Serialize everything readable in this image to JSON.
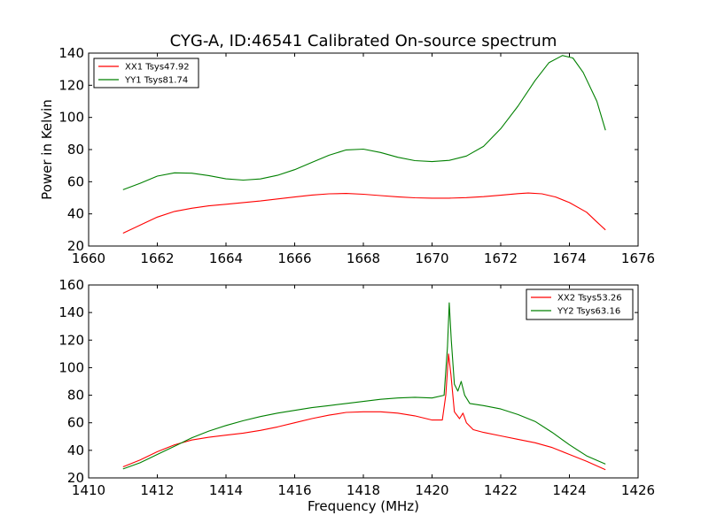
{
  "chart_data": [
    {
      "type": "line",
      "title": "CYG-A, ID:46541 Calibrated On-source spectrum",
      "xlabel": "",
      "ylabel": "Power in Kelvin",
      "xlim": [
        1660,
        1676
      ],
      "ylim": [
        20,
        140
      ],
      "xticks": [
        "1660",
        "1662",
        "1664",
        "1666",
        "1668",
        "1670",
        "1672",
        "1674",
        "1676"
      ],
      "yticks": [
        "20",
        "40",
        "60",
        "80",
        "100",
        "120",
        "140"
      ],
      "grid": false,
      "legend": "top-left",
      "series": [
        {
          "name": "XX1 Tsys47.92",
          "color": "#ff0000",
          "points": [
            [
              1661.0,
              28
            ],
            [
              1661.5,
              33
            ],
            [
              1662.0,
              38
            ],
            [
              1662.5,
              41.5
            ],
            [
              1663.0,
              43.5
            ],
            [
              1663.5,
              45
            ],
            [
              1664.0,
              46
            ],
            [
              1664.5,
              47
            ],
            [
              1665.0,
              48
            ],
            [
              1665.5,
              49.3
            ],
            [
              1666.0,
              50.5
            ],
            [
              1666.5,
              51.7
            ],
            [
              1667.0,
              52.5
            ],
            [
              1667.5,
              52.7
            ],
            [
              1668.0,
              52.2
            ],
            [
              1668.5,
              51.4
            ],
            [
              1669.0,
              50.6
            ],
            [
              1669.5,
              50
            ],
            [
              1670.0,
              49.8
            ],
            [
              1670.5,
              49.8
            ],
            [
              1671.0,
              50.1
            ],
            [
              1671.5,
              50.7
            ],
            [
              1672.0,
              51.6
            ],
            [
              1672.5,
              52.6
            ],
            [
              1672.8,
              53
            ],
            [
              1673.2,
              52.5
            ],
            [
              1673.6,
              50.5
            ],
            [
              1674.0,
              47
            ],
            [
              1674.5,
              41
            ],
            [
              1674.8,
              35
            ],
            [
              1675.05,
              30
            ]
          ]
        },
        {
          "name": "YY1 Tsys81.74",
          "color": "#008000",
          "points": [
            [
              1661.0,
              55
            ],
            [
              1661.5,
              59
            ],
            [
              1662.0,
              63.5
            ],
            [
              1662.5,
              65.5
            ],
            [
              1663.0,
              65.3
            ],
            [
              1663.5,
              63.8
            ],
            [
              1664.0,
              61.8
            ],
            [
              1664.5,
              61
            ],
            [
              1665.0,
              61.7
            ],
            [
              1665.5,
              64
            ],
            [
              1666.0,
              67.5
            ],
            [
              1666.5,
              72
            ],
            [
              1667.0,
              76.5
            ],
            [
              1667.5,
              79.8
            ],
            [
              1668.0,
              80.3
            ],
            [
              1668.5,
              78.2
            ],
            [
              1669.0,
              75.2
            ],
            [
              1669.5,
              73.1
            ],
            [
              1670.0,
              72.5
            ],
            [
              1670.5,
              73.3
            ],
            [
              1671.0,
              76
            ],
            [
              1671.5,
              82
            ],
            [
              1672.0,
              93
            ],
            [
              1672.5,
              107
            ],
            [
              1673.0,
              123
            ],
            [
              1673.4,
              134
            ],
            [
              1673.8,
              138.5
            ],
            [
              1674.1,
              137
            ],
            [
              1674.4,
              128
            ],
            [
              1674.8,
              110
            ],
            [
              1675.05,
              92
            ]
          ]
        }
      ]
    },
    {
      "type": "line",
      "title": "",
      "xlabel": "Frequency (MHz)",
      "ylabel": "",
      "xlim": [
        1410,
        1426
      ],
      "ylim": [
        20,
        160
      ],
      "xticks": [
        "1410",
        "1412",
        "1414",
        "1416",
        "1418",
        "1420",
        "1422",
        "1424",
        "1426"
      ],
      "yticks": [
        "20",
        "40",
        "60",
        "80",
        "100",
        "120",
        "140",
        "160"
      ],
      "grid": false,
      "legend": "top-right",
      "series": [
        {
          "name": "XX2 Tsys53.26",
          "color": "#ff0000",
          "points": [
            [
              1411.0,
              28
            ],
            [
              1411.5,
              33
            ],
            [
              1412.0,
              39
            ],
            [
              1412.5,
              44
            ],
            [
              1413.0,
              47.5
            ],
            [
              1413.5,
              49.5
            ],
            [
              1414.0,
              51
            ],
            [
              1414.5,
              52.5
            ],
            [
              1415.0,
              54.5
            ],
            [
              1415.5,
              57
            ],
            [
              1416.0,
              60
            ],
            [
              1416.5,
              63
            ],
            [
              1417.0,
              65.5
            ],
            [
              1417.5,
              67.5
            ],
            [
              1418.0,
              68
            ],
            [
              1418.5,
              68
            ],
            [
              1419.0,
              67
            ],
            [
              1419.5,
              65
            ],
            [
              1420.0,
              62
            ],
            [
              1420.3,
              62
            ],
            [
              1420.4,
              80
            ],
            [
              1420.48,
              110
            ],
            [
              1420.55,
              95
            ],
            [
              1420.65,
              68
            ],
            [
              1420.8,
              63
            ],
            [
              1420.9,
              67
            ],
            [
              1421.0,
              60
            ],
            [
              1421.2,
              55
            ],
            [
              1421.5,
              53
            ],
            [
              1422.0,
              50.5
            ],
            [
              1422.5,
              48
            ],
            [
              1423.0,
              45.5
            ],
            [
              1423.5,
              42
            ],
            [
              1424.0,
              37
            ],
            [
              1424.5,
              32
            ],
            [
              1425.05,
              26
            ]
          ]
        },
        {
          "name": "YY2 Tsys63.16",
          "color": "#008000",
          "points": [
            [
              1411.0,
              26.5
            ],
            [
              1411.5,
              31
            ],
            [
              1412.0,
              37
            ],
            [
              1412.5,
              43
            ],
            [
              1413.0,
              49
            ],
            [
              1413.5,
              54
            ],
            [
              1414.0,
              58
            ],
            [
              1414.5,
              61.5
            ],
            [
              1415.0,
              64.5
            ],
            [
              1415.5,
              67
            ],
            [
              1416.0,
              69
            ],
            [
              1416.5,
              71
            ],
            [
              1417.0,
              72.5
            ],
            [
              1417.5,
              74
            ],
            [
              1418.0,
              75.5
            ],
            [
              1418.5,
              77
            ],
            [
              1419.0,
              78
            ],
            [
              1419.5,
              78.5
            ],
            [
              1420.0,
              78
            ],
            [
              1420.35,
              80
            ],
            [
              1420.45,
              115
            ],
            [
              1420.5,
              147
            ],
            [
              1420.56,
              120
            ],
            [
              1420.65,
              88
            ],
            [
              1420.75,
              83
            ],
            [
              1420.85,
              90
            ],
            [
              1420.95,
              80
            ],
            [
              1421.1,
              74
            ],
            [
              1421.5,
              72.5
            ],
            [
              1422.0,
              70
            ],
            [
              1422.5,
              66
            ],
            [
              1423.0,
              61
            ],
            [
              1423.5,
              53
            ],
            [
              1424.0,
              44
            ],
            [
              1424.5,
              36
            ],
            [
              1425.05,
              30
            ]
          ]
        }
      ]
    }
  ]
}
